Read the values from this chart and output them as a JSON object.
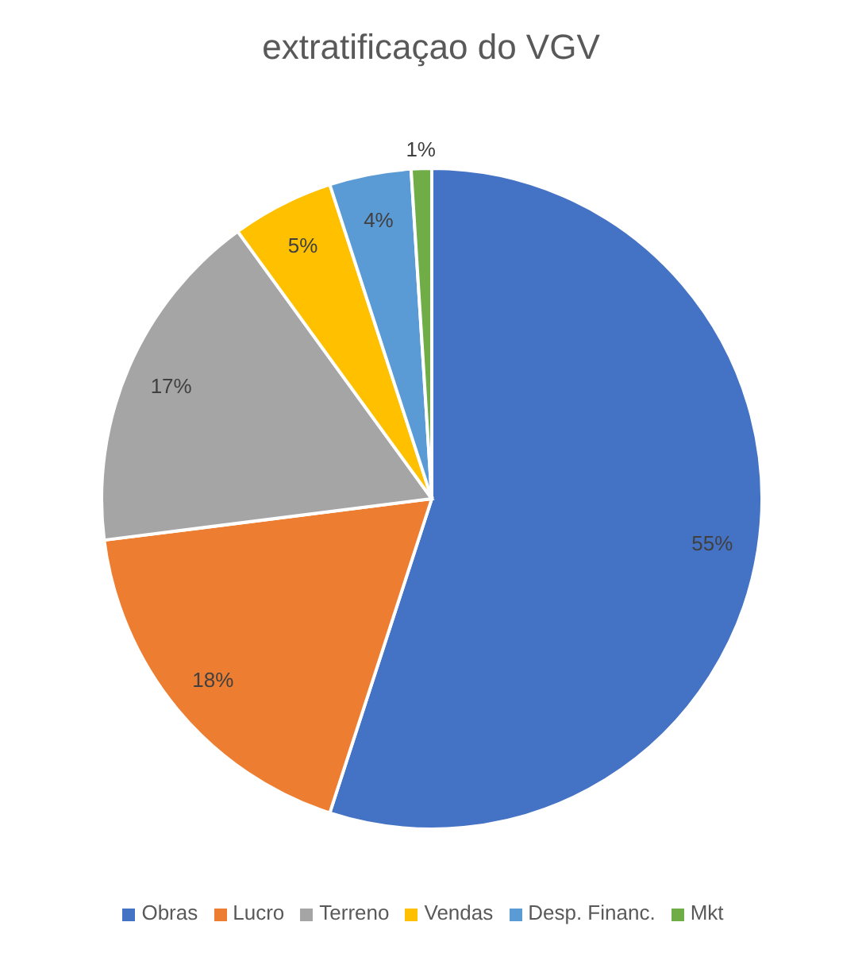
{
  "chart_data": {
    "type": "pie",
    "title": "extratificaçao do VGV",
    "categories": [
      "Obras",
      "Lucro",
      "Terreno",
      "Vendas",
      "Desp. Financ.",
      "Mkt"
    ],
    "values": [
      55,
      18,
      17,
      5,
      4,
      1
    ],
    "colors": [
      "#4472c4",
      "#ed7d31",
      "#a5a5a5",
      "#ffc000",
      "#5b9bd5",
      "#70ad47"
    ],
    "value_labels": [
      "55%",
      "18%",
      "17%",
      "5%",
      "4%",
      "1%"
    ],
    "legend": "bottom"
  }
}
